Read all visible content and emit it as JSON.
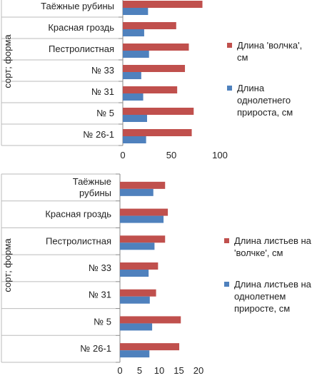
{
  "chart_data": [
    {
      "type": "bar",
      "orientation": "horizontal",
      "categories": [
        "Таёжные рубины",
        "Красная гроздь",
        "Пестролистная",
        "№ 33",
        "№ 31",
        "№ 5",
        "№ 26-1"
      ],
      "series": [
        {
          "name": "Длина 'волчка', см",
          "color": "#c0504d",
          "values": [
            82,
            55,
            68,
            64,
            56,
            73,
            71
          ]
        },
        {
          "name": "Длина однолетнего прироста, см",
          "color": "#4f81bd",
          "values": [
            26,
            22,
            27,
            19,
            21,
            25,
            24
          ]
        }
      ],
      "ylabel": "сорт; форма",
      "xlim": [
        0,
        100
      ],
      "xticks": [
        "0",
        "50",
        "100"
      ],
      "grid": false,
      "legend": "right"
    },
    {
      "type": "bar",
      "orientation": "horizontal",
      "categories": [
        "Таёжные рубины",
        "Красная гроздь",
        "Пестролистная",
        "№ 33",
        "№ 31",
        "№ 5",
        "№ 26-1"
      ],
      "series": [
        {
          "name": "Длина листьев на 'волчке', см",
          "color": "#c0504d",
          "values": [
            11.5,
            12.2,
            11.5,
            9.7,
            9.2,
            15.5,
            15.1
          ]
        },
        {
          "name": "Длина листьев на однолетнем приросте, см",
          "color": "#4f81bd",
          "values": [
            8.5,
            11.1,
            8.8,
            7.3,
            7.6,
            8.2,
            7.5
          ]
        }
      ],
      "ylabel": "сорт; форма",
      "xlim": [
        0,
        20
      ],
      "xticks": [
        "0",
        "5",
        "10",
        "15",
        "20"
      ],
      "grid": false,
      "legend": "right"
    }
  ]
}
